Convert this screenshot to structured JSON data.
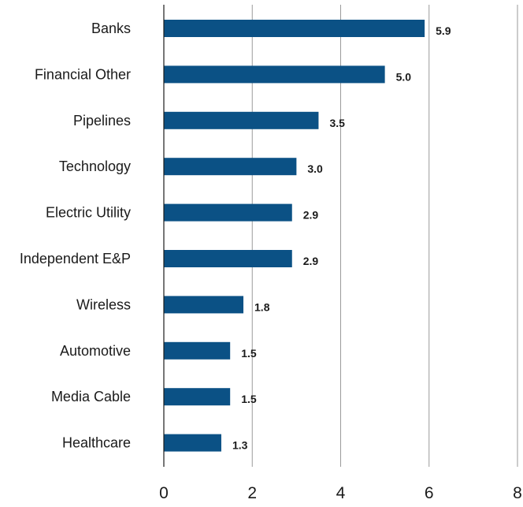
{
  "chart_data": {
    "type": "bar",
    "orientation": "horizontal",
    "title": "",
    "xlabel": "",
    "ylabel": "",
    "categories": [
      "Banks",
      "Financial Other",
      "Pipelines",
      "Technology",
      "Electric Utility",
      "Independent E&P",
      "Wireless",
      "Automotive",
      "Media Cable",
      "Healthcare"
    ],
    "values": [
      5.9,
      5.0,
      3.5,
      3.0,
      2.9,
      2.9,
      1.8,
      1.5,
      1.5,
      1.3
    ],
    "value_labels": [
      "5.9",
      "5.0",
      "3.5",
      "3.0",
      "2.9",
      "2.9",
      "1.8",
      "1.5",
      "1.5",
      "1.3"
    ],
    "xlim": [
      0,
      8
    ],
    "xticks": [
      0,
      2,
      4,
      6,
      8
    ],
    "xtick_labels": [
      "0",
      "2",
      "4",
      "6",
      "8"
    ],
    "grid": "vertical",
    "legend": "none",
    "bar_color": "#0b5185"
  }
}
